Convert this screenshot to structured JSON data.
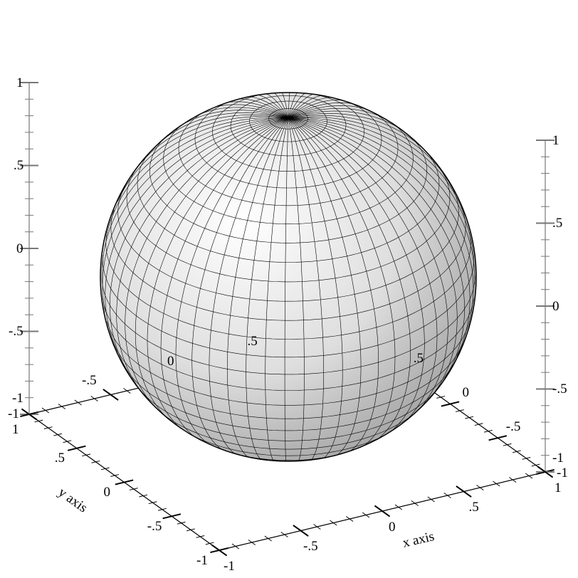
{
  "chart_data": {
    "type": "surface3d",
    "surface": "sphere",
    "radius": 1,
    "center": [
      0,
      0,
      0
    ],
    "xlabel": "x axis",
    "ylabel": "y axis",
    "zlabel": "",
    "xlim": [
      -1,
      1
    ],
    "ylim": [
      -1,
      1
    ],
    "zlim": [
      -1,
      1
    ],
    "major_ticks": [
      -1,
      -0.5,
      0,
      0.5,
      1
    ],
    "minor_tick_step": 0.1,
    "tick_labels": {
      "-1": "-1",
      "-0.5": "-.5",
      "0": "0",
      "0.5": ".5",
      "1": "1"
    },
    "grid": false,
    "mesh": true,
    "fill_color": "#d8d8d8",
    "line_color": "#000000"
  }
}
